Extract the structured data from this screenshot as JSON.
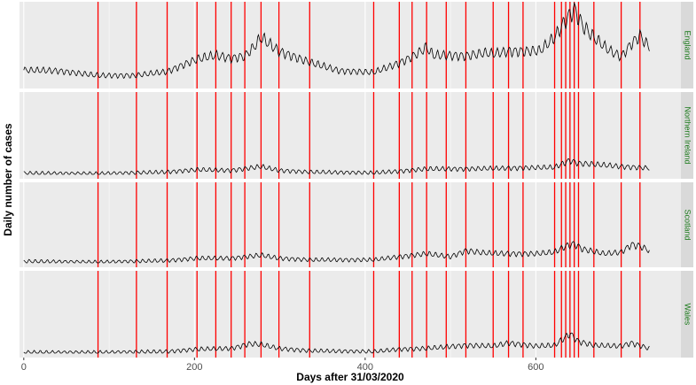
{
  "chart_data": {
    "type": "line",
    "xlabel": "Days after 31/03/2020",
    "ylabel": "Daily number of cases",
    "xlim": [
      -5,
      770
    ],
    "x_ticks": [
      0,
      200,
      400,
      600
    ],
    "x_tick_labels": [
      "0",
      "200",
      "400",
      "600"
    ],
    "grid": true,
    "legend": "none",
    "colors": {
      "panel_bg": "#ebebeb",
      "grid": "#ffffff",
      "line": "#000000",
      "vline": "#ff0000",
      "strip_bg": "#d9d9d9",
      "strip_text": "#1a7a1a"
    },
    "vertical_lines_x": [
      87,
      132,
      168,
      203,
      225,
      243,
      259,
      278,
      299,
      335,
      410,
      440,
      455,
      472,
      495,
      518,
      550,
      568,
      585,
      622,
      630,
      635,
      640,
      645,
      650,
      668,
      700,
      722
    ],
    "panels": [
      {
        "strip": "England",
        "ylim": [
          0,
          1
        ],
        "anchors": [
          [
            0,
            0.18
          ],
          [
            40,
            0.17
          ],
          [
            87,
            0.11
          ],
          [
            130,
            0.11
          ],
          [
            168,
            0.16
          ],
          [
            203,
            0.32
          ],
          [
            225,
            0.37
          ],
          [
            243,
            0.33
          ],
          [
            259,
            0.36
          ],
          [
            270,
            0.48
          ],
          [
            278,
            0.6
          ],
          [
            299,
            0.42
          ],
          [
            335,
            0.28
          ],
          [
            370,
            0.17
          ],
          [
            410,
            0.15
          ],
          [
            440,
            0.27
          ],
          [
            455,
            0.35
          ],
          [
            472,
            0.47
          ],
          [
            480,
            0.37
          ],
          [
            495,
            0.37
          ],
          [
            518,
            0.36
          ],
          [
            540,
            0.4
          ],
          [
            550,
            0.39
          ],
          [
            568,
            0.42
          ],
          [
            585,
            0.42
          ],
          [
            605,
            0.43
          ],
          [
            622,
            0.6
          ],
          [
            635,
            0.82
          ],
          [
            645,
            0.96
          ],
          [
            655,
            0.75
          ],
          [
            668,
            0.6
          ],
          [
            685,
            0.44
          ],
          [
            700,
            0.35
          ],
          [
            712,
            0.52
          ],
          [
            722,
            0.62
          ],
          [
            733,
            0.47
          ]
        ]
      },
      {
        "strip": "Northern Ireland",
        "ylim": [
          0,
          1
        ],
        "anchors": [
          [
            0,
            0.015
          ],
          [
            87,
            0.01
          ],
          [
            168,
            0.03
          ],
          [
            203,
            0.06
          ],
          [
            243,
            0.05
          ],
          [
            278,
            0.1
          ],
          [
            299,
            0.05
          ],
          [
            335,
            0.03
          ],
          [
            410,
            0.02
          ],
          [
            440,
            0.04
          ],
          [
            472,
            0.07
          ],
          [
            518,
            0.07
          ],
          [
            568,
            0.08
          ],
          [
            622,
            0.09
          ],
          [
            640,
            0.18
          ],
          [
            650,
            0.14
          ],
          [
            668,
            0.13
          ],
          [
            700,
            0.1
          ],
          [
            733,
            0.08
          ]
        ]
      },
      {
        "strip": "Scotland",
        "ylim": [
          0,
          1
        ],
        "anchors": [
          [
            0,
            0.02
          ],
          [
            87,
            0.01
          ],
          [
            168,
            0.03
          ],
          [
            203,
            0.06
          ],
          [
            243,
            0.06
          ],
          [
            278,
            0.1
          ],
          [
            299,
            0.06
          ],
          [
            335,
            0.04
          ],
          [
            410,
            0.04
          ],
          [
            440,
            0.08
          ],
          [
            472,
            0.12
          ],
          [
            500,
            0.08
          ],
          [
            518,
            0.16
          ],
          [
            540,
            0.13
          ],
          [
            568,
            0.12
          ],
          [
            600,
            0.12
          ],
          [
            622,
            0.14
          ],
          [
            635,
            0.22
          ],
          [
            645,
            0.25
          ],
          [
            655,
            0.18
          ],
          [
            680,
            0.12
          ],
          [
            700,
            0.14
          ],
          [
            712,
            0.24
          ],
          [
            722,
            0.22
          ],
          [
            733,
            0.16
          ]
        ]
      },
      {
        "strip": "Wales",
        "ylim": [
          0,
          1
        ],
        "anchors": [
          [
            0,
            0.01
          ],
          [
            87,
            0.01
          ],
          [
            168,
            0.02
          ],
          [
            203,
            0.05
          ],
          [
            243,
            0.06
          ],
          [
            265,
            0.12
          ],
          [
            278,
            0.11
          ],
          [
            299,
            0.06
          ],
          [
            335,
            0.03
          ],
          [
            410,
            0.02
          ],
          [
            440,
            0.05
          ],
          [
            472,
            0.06
          ],
          [
            518,
            0.1
          ],
          [
            550,
            0.09
          ],
          [
            568,
            0.13
          ],
          [
            600,
            0.09
          ],
          [
            622,
            0.1
          ],
          [
            640,
            0.25
          ],
          [
            650,
            0.15
          ],
          [
            668,
            0.1
          ],
          [
            700,
            0.09
          ],
          [
            712,
            0.13
          ],
          [
            733,
            0.06
          ]
        ]
      }
    ]
  }
}
